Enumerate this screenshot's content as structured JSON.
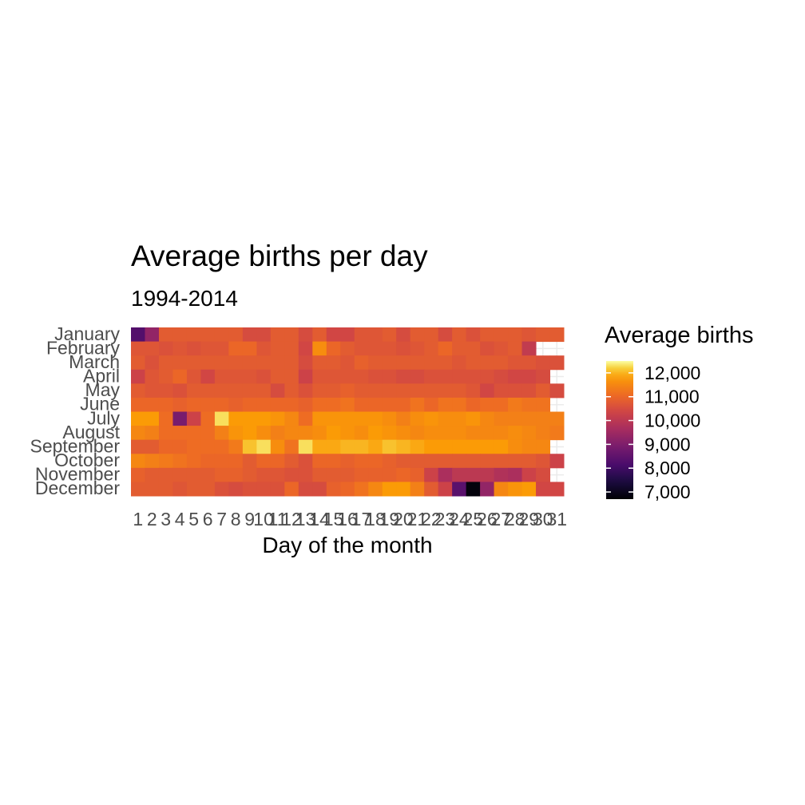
{
  "chart_data": {
    "type": "heatmap",
    "title": "Average births per day",
    "subtitle": "1994-2014",
    "xlabel": "Day of the month",
    "ylabel": "",
    "legend": {
      "title": "Average births",
      "position": "right",
      "ticks": [
        "7,000",
        "8,000",
        "9,000",
        "10,000",
        "11,000",
        "12,000"
      ],
      "tick_values": [
        7000,
        8000,
        9000,
        10000,
        11000,
        12000
      ],
      "range": [
        6700,
        12500
      ]
    },
    "x_categories": [
      "1",
      "2",
      "3",
      "4",
      "5",
      "6",
      "7",
      "8",
      "9",
      "10",
      "11",
      "12",
      "13",
      "14",
      "15",
      "16",
      "17",
      "18",
      "19",
      "20",
      "21",
      "22",
      "23",
      "24",
      "25",
      "26",
      "27",
      "28",
      "29",
      "30",
      "31"
    ],
    "y_categories": [
      "January",
      "February",
      "March",
      "April",
      "May",
      "June",
      "July",
      "August",
      "September",
      "October",
      "November",
      "December"
    ],
    "values": [
      [
        8300,
        9300,
        10800,
        10800,
        10800,
        10800,
        10800,
        10800,
        10500,
        10500,
        10800,
        10800,
        10500,
        10800,
        10400,
        10400,
        10700,
        10700,
        10800,
        10500,
        10800,
        10800,
        10500,
        10800,
        10600,
        10800,
        10800,
        10800,
        10700,
        10800,
        10800
      ],
      [
        10700,
        10700,
        10600,
        10700,
        10600,
        10700,
        10700,
        11000,
        11000,
        10700,
        10800,
        10800,
        10400,
        11600,
        11000,
        10800,
        10700,
        10700,
        10700,
        10600,
        10700,
        10800,
        11000,
        10800,
        10800,
        10600,
        10700,
        10800,
        10100,
        null,
        null
      ],
      [
        10800,
        10600,
        10800,
        10800,
        10800,
        10800,
        10800,
        10800,
        10800,
        10800,
        10800,
        10800,
        10500,
        10800,
        10800,
        10700,
        10900,
        10800,
        10800,
        10800,
        10800,
        10800,
        10800,
        10700,
        10800,
        10800,
        10800,
        10700,
        10700,
        10600,
        10600
      ],
      [
        10300,
        10700,
        10800,
        11000,
        10700,
        10400,
        10700,
        10700,
        10700,
        10600,
        10800,
        10800,
        10300,
        10700,
        10700,
        10700,
        10700,
        10600,
        10600,
        10500,
        10500,
        10600,
        10600,
        10600,
        10600,
        10600,
        10500,
        10400,
        10400,
        10500,
        null
      ],
      [
        10800,
        10700,
        10700,
        10600,
        10800,
        10800,
        10800,
        10800,
        10800,
        10800,
        10500,
        10800,
        10600,
        10800,
        10800,
        10900,
        10800,
        10800,
        10800,
        10800,
        10800,
        10800,
        10800,
        10800,
        10700,
        10400,
        10600,
        10600,
        10600,
        10800,
        10500
      ],
      [
        11000,
        11000,
        11000,
        10900,
        11000,
        11000,
        11000,
        10900,
        11000,
        11000,
        11000,
        11000,
        10900,
        11100,
        11100,
        11200,
        11000,
        11000,
        11000,
        11000,
        11200,
        11000,
        11200,
        11200,
        11000,
        11100,
        11100,
        11300,
        11200,
        11200,
        null
      ],
      [
        11800,
        11800,
        11100,
        8900,
        10300,
        11100,
        12300,
        11800,
        11800,
        11800,
        11700,
        11500,
        11100,
        11700,
        11700,
        11700,
        11700,
        11700,
        11600,
        11400,
        11600,
        11700,
        11600,
        11600,
        11700,
        11500,
        11400,
        11400,
        11400,
        11400,
        11400
      ],
      [
        11500,
        11400,
        11100,
        11100,
        11100,
        11100,
        11400,
        11700,
        11800,
        11600,
        11400,
        11500,
        11500,
        11600,
        11800,
        11700,
        11600,
        11800,
        11700,
        11600,
        11500,
        11600,
        11600,
        11600,
        11500,
        11500,
        11500,
        11600,
        11500,
        11400,
        11300
      ],
      [
        10800,
        10800,
        11000,
        11000,
        11100,
        11100,
        11100,
        11300,
        12100,
        12300,
        11600,
        11200,
        12300,
        11900,
        11900,
        12000,
        12000,
        11900,
        12100,
        12000,
        11900,
        11800,
        11800,
        11800,
        11800,
        11800,
        11800,
        11600,
        11500,
        11500,
        null
      ],
      [
        11500,
        11400,
        11300,
        11200,
        11100,
        11000,
        11000,
        11000,
        10800,
        11000,
        11000,
        10800,
        10600,
        11000,
        11000,
        10900,
        11000,
        11000,
        10900,
        10800,
        10800,
        10800,
        10800,
        10800,
        10800,
        10800,
        10800,
        10800,
        10800,
        10700,
        10300
      ],
      [
        10900,
        10800,
        10800,
        10800,
        10800,
        10800,
        10900,
        10900,
        10800,
        10700,
        10700,
        10600,
        10600,
        10800,
        10800,
        10800,
        10900,
        10900,
        10900,
        11000,
        10900,
        10300,
        9700,
        10000,
        10000,
        10000,
        9800,
        9700,
        10300,
        10500,
        null
      ],
      [
        10800,
        10800,
        10800,
        10700,
        10800,
        10800,
        10600,
        10500,
        10600,
        10600,
        10600,
        11000,
        10500,
        10500,
        10900,
        11000,
        11200,
        11500,
        11800,
        11800,
        11400,
        10800,
        10300,
        8400,
        6800,
        9300,
        11500,
        11700,
        11800,
        10400,
        10400
      ]
    ]
  }
}
